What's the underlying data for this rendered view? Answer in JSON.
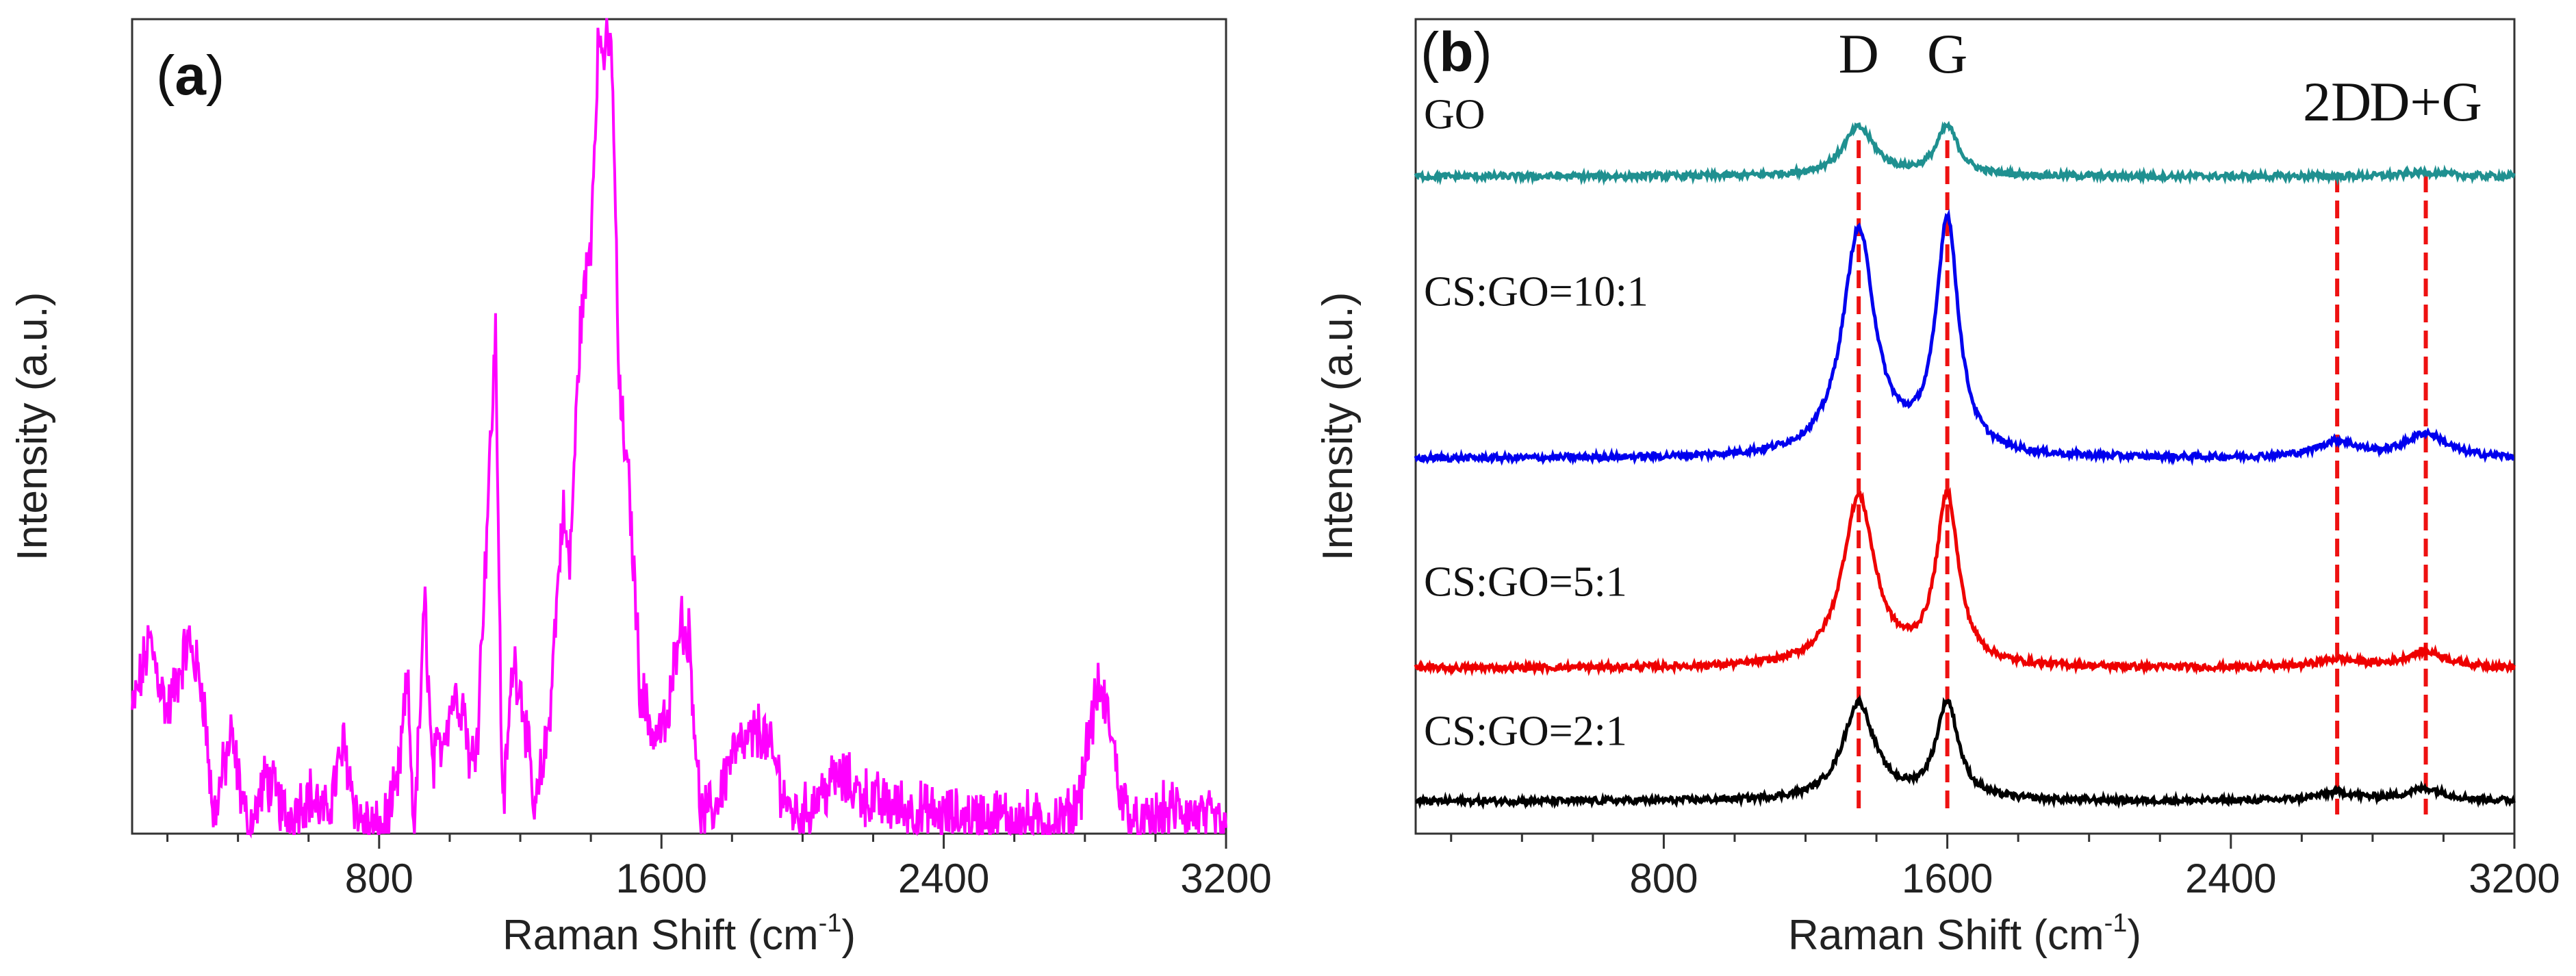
{
  "chart_data": [
    {
      "panel": "(a)",
      "panel_letter": "a",
      "type": "line",
      "xlabel_main": "Raman Shift (cm",
      "xlabel_sup": "-1",
      "xlabel_close": ")",
      "ylabel": "Intensity (a.u.)",
      "xlim": [
        100,
        3200
      ],
      "ylim": [
        0,
        1
      ],
      "xticks": [
        800,
        1600,
        2400,
        3200
      ],
      "color": "#ff00ff",
      "series": [
        {
          "name": "sample",
          "points": [
            [
              100,
              0.15
            ],
            [
              150,
              0.24
            ],
            [
              200,
              0.15
            ],
            [
              260,
              0.24
            ],
            [
              300,
              0.18
            ],
            [
              330,
              0.02
            ],
            [
              380,
              0.12
            ],
            [
              430,
              0.0
            ],
            [
              480,
              0.07
            ],
            [
              540,
              0.02
            ],
            [
              600,
              0.05
            ],
            [
              650,
              0.02
            ],
            [
              700,
              0.11
            ],
            [
              740,
              0.02
            ],
            [
              800,
              0.0
            ],
            [
              850,
              0.05
            ],
            [
              880,
              0.19
            ],
            [
              900,
              0.0
            ],
            [
              930,
              0.29
            ],
            [
              950,
              0.08
            ],
            [
              980,
              0.12
            ],
            [
              1010,
              0.17
            ],
            [
              1040,
              0.16
            ],
            [
              1060,
              0.08
            ],
            [
              1080,
              0.14
            ],
            [
              1130,
              0.62
            ],
            [
              1150,
              0.02
            ],
            [
              1180,
              0.22
            ],
            [
              1210,
              0.16
            ],
            [
              1240,
              0.02
            ],
            [
              1280,
              0.13
            ],
            [
              1320,
              0.4
            ],
            [
              1340,
              0.33
            ],
            [
              1370,
              0.63
            ],
            [
              1400,
              0.74
            ],
            [
              1420,
              0.98
            ],
            [
              1440,
              0.97
            ],
            [
              1460,
              0.97
            ],
            [
              1480,
              0.55
            ],
            [
              1510,
              0.42
            ],
            [
              1540,
              0.18
            ],
            [
              1580,
              0.12
            ],
            [
              1620,
              0.14
            ],
            [
              1650,
              0.27
            ],
            [
              1680,
              0.24
            ],
            [
              1710,
              0.02
            ],
            [
              1750,
              0.03
            ],
            [
              1800,
              0.1
            ],
            [
              1840,
              0.11
            ],
            [
              1880,
              0.13
            ],
            [
              1920,
              0.09
            ],
            [
              1960,
              0.03
            ],
            [
              2000,
              0.02
            ],
            [
              2050,
              0.05
            ],
            [
              2100,
              0.07
            ],
            [
              2200,
              0.04
            ],
            [
              2300,
              0.03
            ],
            [
              2400,
              0.02
            ],
            [
              2500,
              0.02
            ],
            [
              2600,
              0.02
            ],
            [
              2700,
              0.01
            ],
            [
              2760,
              0.02
            ],
            [
              2790,
              0.06
            ],
            [
              2810,
              0.12
            ],
            [
              2840,
              0.18
            ],
            [
              2870,
              0.14
            ],
            [
              2900,
              0.05
            ],
            [
              2950,
              0.0
            ],
            [
              3000,
              0.02
            ],
            [
              3060,
              0.03
            ],
            [
              3120,
              0.02
            ],
            [
              3200,
              0.01
            ]
          ]
        }
      ]
    },
    {
      "panel": "(b)",
      "panel_letter": "b",
      "type": "line",
      "xlabel_main": "Raman Shift (cm",
      "xlabel_sup": "-1",
      "xlabel_close": ")",
      "ylabel": "Intensity (a.u.)",
      "xlim": [
        100,
        3200
      ],
      "ylim": [
        0,
        1
      ],
      "xticks": [
        800,
        1600,
        2400,
        3200
      ],
      "peak_markers": [
        {
          "label": "D",
          "x": 1350
        },
        {
          "label": "G",
          "x": 1600
        },
        {
          "label": "2D",
          "x": 2700
        },
        {
          "label": "D+G",
          "x": 2950
        }
      ],
      "series": [
        {
          "name": "GO",
          "color": "#1f9090",
          "baseline": 0.815,
          "d_height": 0.06,
          "g_height": 0.06,
          "d2_height": 0.0,
          "dg_height": 0.005
        },
        {
          "name": "CS:GO=10:1",
          "color": "#0000ee",
          "baseline": 0.465,
          "d_height": 0.28,
          "g_height": 0.29,
          "d2_height": 0.02,
          "dg_height": 0.03
        },
        {
          "name": "CS:GO=5:1",
          "color": "#ee0000",
          "baseline": 0.205,
          "d_height": 0.21,
          "g_height": 0.21,
          "d2_height": 0.01,
          "dg_height": 0.02
        },
        {
          "name": "CS:GO=2:1",
          "color": "#000000",
          "baseline": 0.04,
          "d_height": 0.12,
          "g_height": 0.12,
          "d2_height": 0.01,
          "dg_height": 0.015
        }
      ]
    }
  ],
  "colors": {
    "marker_line": "#ee1111",
    "axis": "#333333"
  }
}
